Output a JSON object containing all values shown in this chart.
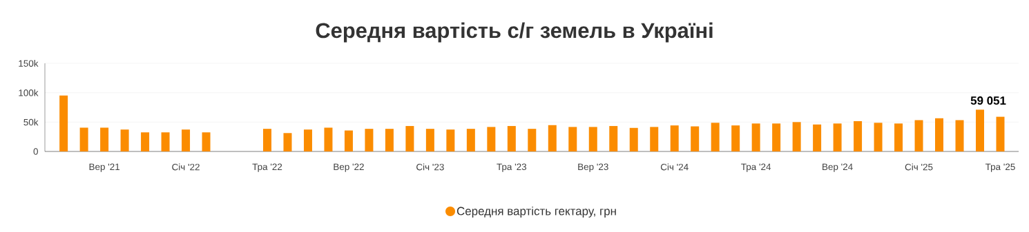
{
  "chart_data": {
    "type": "bar",
    "title": "Середня вартість с/г земель в Україні",
    "categories": [
      null,
      null,
      "Вер '21",
      null,
      null,
      null,
      "Січ '22",
      null,
      null,
      null,
      "Тра '22",
      null,
      null,
      null,
      "Вер '22",
      null,
      null,
      null,
      "Січ '23",
      null,
      null,
      null,
      "Тра '23",
      null,
      null,
      null,
      "Вер '23",
      null,
      null,
      null,
      "Січ '24",
      null,
      null,
      null,
      "Тра '24",
      null,
      null,
      null,
      "Вер '24",
      null,
      null,
      null,
      "Січ '25",
      null,
      null,
      null,
      "Тра '25"
    ],
    "series": [
      {
        "name": "Середня вартість гектару, грн",
        "color": "#fb8c00",
        "values": [
          95200,
          40500,
          40500,
          37300,
          32500,
          32500,
          37300,
          32500,
          null,
          null,
          38500,
          31300,
          37300,
          40500,
          35700,
          38500,
          38500,
          43300,
          38500,
          37300,
          38500,
          41700,
          43300,
          38500,
          44800,
          41700,
          41700,
          43300,
          40100,
          41700,
          44300,
          42700,
          48800,
          44300,
          47600,
          47600,
          50000,
          45900,
          47600,
          51600,
          48800,
          47600,
          53300,
          56500,
          53300,
          71100,
          59051
        ],
        "value_labels": [
          null,
          null,
          null,
          null,
          null,
          null,
          null,
          null,
          null,
          null,
          null,
          null,
          null,
          null,
          null,
          null,
          null,
          null,
          null,
          null,
          null,
          null,
          null,
          null,
          null,
          null,
          null,
          null,
          null,
          null,
          null,
          null,
          null,
          null,
          null,
          null,
          null,
          null,
          null,
          null,
          null,
          null,
          null,
          null,
          null,
          null,
          "59 051"
        ]
      }
    ],
    "ylim": [
      0,
      150000
    ],
    "yticks": [
      0,
      {
        "value": 50000,
        "label": "50k"
      },
      {
        "value": 100000,
        "label": "100k"
      },
      {
        "value": 150000,
        "label": "150k"
      }
    ],
    "grid": "y",
    "legend": "bottom"
  }
}
